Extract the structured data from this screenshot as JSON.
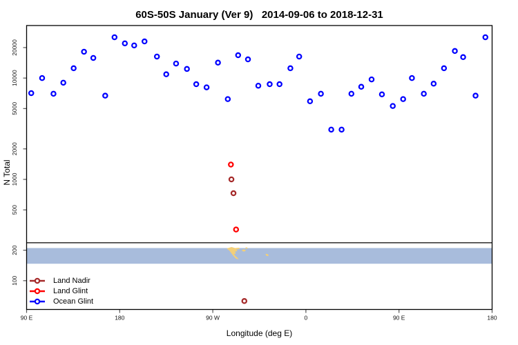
{
  "title": "60S-50S January (Ver 9)   2014-09-06 to 2018-12-31",
  "axes": {
    "x": {
      "label": "Longitude (deg E)",
      "range": [
        90,
        540
      ],
      "ticks": [
        {
          "value": 90,
          "label": "90 E"
        },
        {
          "value": 180,
          "label": "180"
        },
        {
          "value": 270,
          "label": "90 W"
        },
        {
          "value": 360,
          "label": "0"
        },
        {
          "value": 450,
          "label": "90 E"
        },
        {
          "value": 540,
          "label": "180"
        }
      ]
    },
    "y": {
      "label": "N Total",
      "scale": "log",
      "range": [
        52,
        33000
      ],
      "ticks": [
        {
          "value": 100,
          "label": "100"
        },
        {
          "value": 200,
          "label": "200"
        },
        {
          "value": 500,
          "label": "500"
        },
        {
          "value": 1000,
          "label": "1000"
        },
        {
          "value": 2000,
          "label": "2000"
        },
        {
          "value": 5000,
          "label": "5000"
        },
        {
          "value": 10000,
          "label": "10000"
        },
        {
          "value": 20000,
          "label": "20000"
        }
      ]
    }
  },
  "legend": {
    "items": [
      {
        "label": "Land Nadir",
        "color": "#a52a2a"
      },
      {
        "label": "Land Glint",
        "color": "#ff0000"
      },
      {
        "label": "Ocean Glint",
        "color": "#0000ff"
      }
    ]
  },
  "chart_data": {
    "type": "scatter",
    "title": "60S-50S January (Ver 9)   2014-09-06 to 2018-12-31",
    "xlabel": "Longitude (deg E)",
    "ylabel": "N Total",
    "xlim": [
      90,
      540
    ],
    "ylim": [
      52,
      33000
    ],
    "y_scale": "log",
    "grid": false,
    "legend_position": "bottom-left",
    "x_note": "Longitude axis continues eastward past 180: 270=90W, 360=0, 450=90E, 540=180",
    "series": [
      {
        "name": "Ocean Glint",
        "color": "#0000ff",
        "marker": "open-circle",
        "points": [
          [
            94.5,
            7100
          ],
          [
            105,
            10000
          ],
          [
            116,
            7000
          ],
          [
            125.5,
            9000
          ],
          [
            135.5,
            12500
          ],
          [
            145.5,
            18200
          ],
          [
            154.5,
            15800
          ],
          [
            166,
            6700
          ],
          [
            175,
            25300
          ],
          [
            185,
            22000
          ],
          [
            194,
            21000
          ],
          [
            204,
            23000
          ],
          [
            216,
            16300
          ],
          [
            225,
            10900
          ],
          [
            234.5,
            13900
          ],
          [
            245,
            12300
          ],
          [
            254,
            8700
          ],
          [
            264,
            8100
          ],
          [
            275,
            14200
          ],
          [
            284.5,
            6200
          ],
          [
            294.5,
            16800
          ],
          [
            304,
            15300
          ],
          [
            314,
            8400
          ],
          [
            325,
            8700
          ],
          [
            334.5,
            8700
          ],
          [
            345,
            12500
          ],
          [
            353.5,
            16300
          ],
          [
            364,
            5900
          ],
          [
            374.5,
            7000
          ],
          [
            384.5,
            3100
          ],
          [
            394.5,
            3100
          ],
          [
            404,
            7000
          ],
          [
            413.5,
            8200
          ],
          [
            423.5,
            9700
          ],
          [
            433.5,
            6900
          ],
          [
            444,
            5300
          ],
          [
            454,
            6200
          ],
          [
            462.5,
            10000
          ],
          [
            474,
            7000
          ],
          [
            483.5,
            8800
          ],
          [
            493.5,
            12500
          ],
          [
            504,
            18500
          ],
          [
            512,
            16100
          ],
          [
            524,
            6700
          ],
          [
            533.5,
            25300
          ]
        ]
      },
      {
        "name": "Land Glint",
        "color": "#ff0000",
        "marker": "open-circle",
        "points": [
          [
            287.5,
            1400
          ],
          [
            292.5,
            320
          ]
        ]
      },
      {
        "name": "Land Nadir",
        "color": "#a52a2a",
        "marker": "open-circle",
        "points": [
          [
            288,
            1000
          ],
          [
            290,
            730
          ],
          [
            300.5,
            63
          ]
        ]
      }
    ]
  },
  "map_band": {
    "description": "60S-50S latitude strip map",
    "ocean_color": "#a8bcdc",
    "land_color": "#f2cf79",
    "top_value": 210,
    "bottom_value": 147,
    "separator_value": 237,
    "land_features": [
      {
        "name": "south-america-patagonia",
        "lon_start": 283.5,
        "lon_end": 296.5
      },
      {
        "name": "falkland-islands",
        "lon": 300
      },
      {
        "name": "south-georgia",
        "lon": 322.5
      }
    ]
  }
}
